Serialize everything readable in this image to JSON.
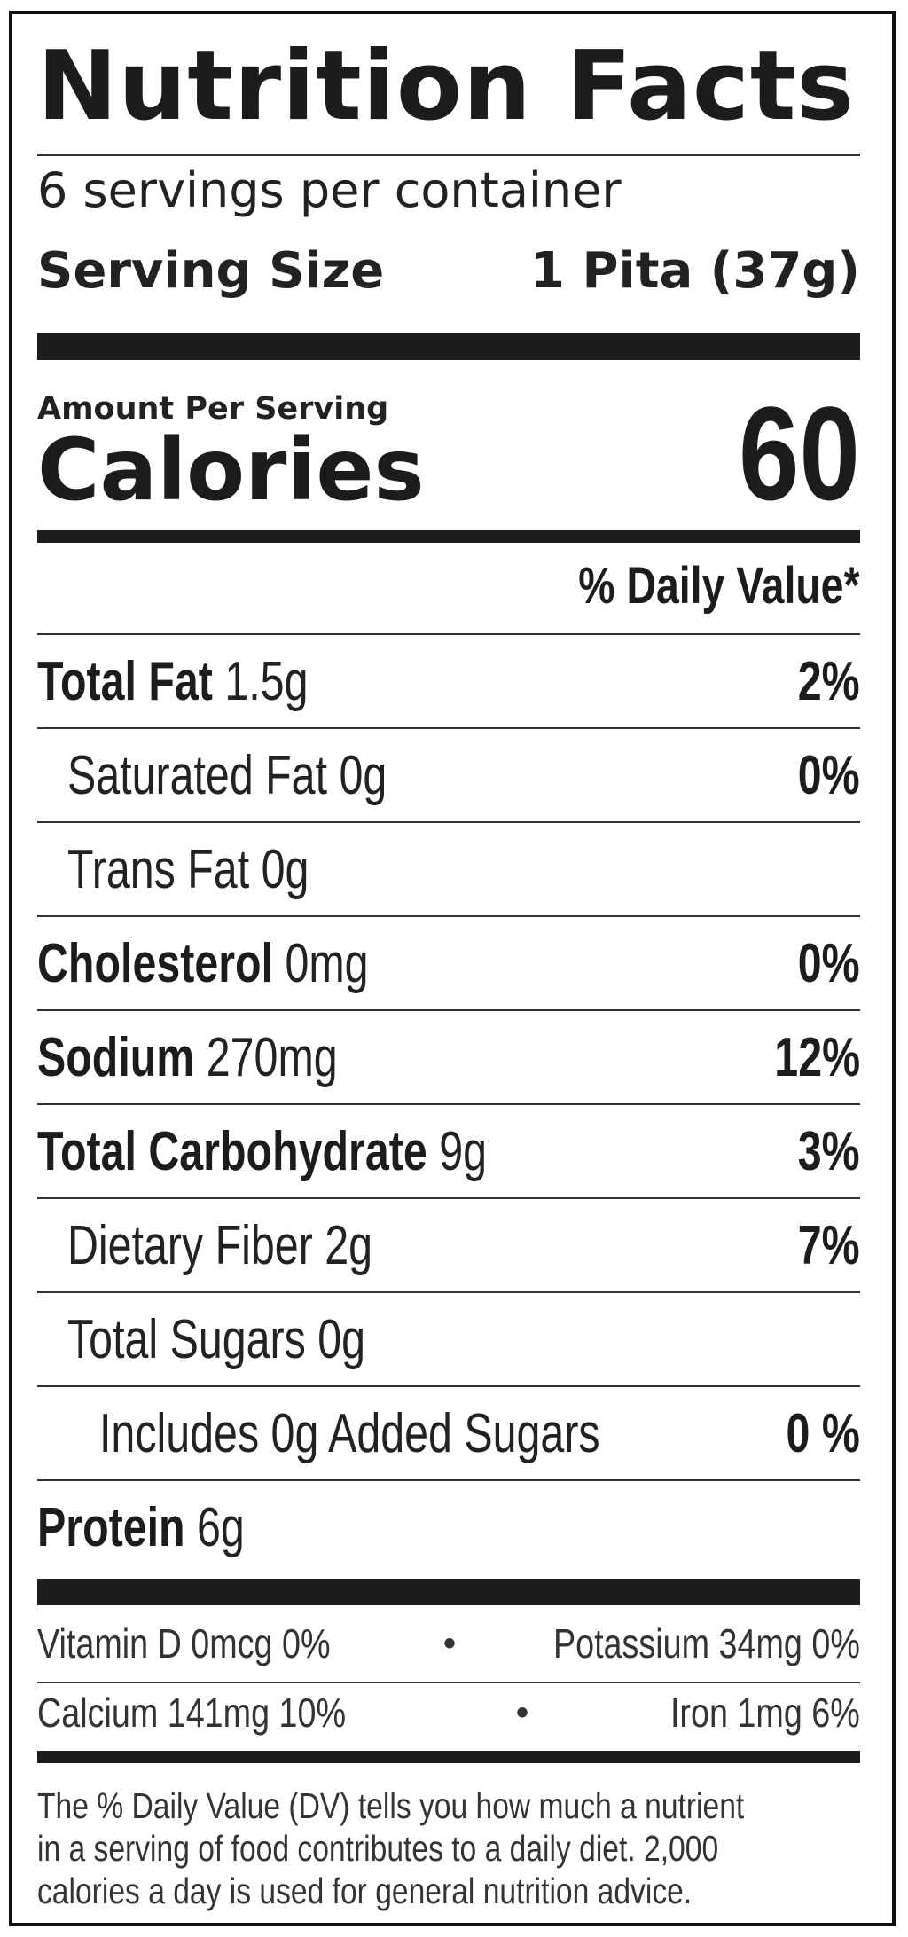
{
  "label": {
    "title": "Nutrition Facts",
    "servings_per_container": "6 servings per container",
    "serving_size_label": "Serving Size",
    "serving_size_value": "1 Pita (37g)",
    "amount_per_serving": "Amount Per Serving",
    "calories_label": "Calories",
    "calories_value": "60",
    "daily_value_header": "% Daily Value*"
  },
  "nutrients": [
    {
      "name": "Total Fat",
      "amount": " 1.5g",
      "dv": "2%"
    },
    {
      "name": "Saturated Fat 0g",
      "amount": "",
      "dv": "0%"
    },
    {
      "name": "Trans Fat 0g",
      "amount": "",
      "dv": ""
    },
    {
      "name": "Cholesterol",
      "amount": " 0mg",
      "dv": "0%"
    },
    {
      "name": "Sodium",
      "amount": " 270mg",
      "dv": "12%"
    },
    {
      "name": "Total Carbohydrate",
      "amount": " 9g",
      "dv": "3%"
    },
    {
      "name": "Dietary Fiber 2g",
      "amount": "",
      "dv": "7%"
    },
    {
      "name": "Total Sugars 0g",
      "amount": "",
      "dv": ""
    },
    {
      "name": "Includes 0g Added Sugars",
      "amount": "",
      "dv": "0 %"
    },
    {
      "name": "Protein",
      "amount": " 6g",
      "dv": ""
    }
  ],
  "minerals": {
    "vitamin_d": "Vitamin D 0mcg 0%",
    "potassium": "Potassium 34mg 0%",
    "calcium": "Calcium 141mg 10%",
    "iron": "Iron 1mg 6%",
    "separator": "•"
  },
  "footnote": {
    "line1": "The % Daily Value (DV) tells you how much a nutrient",
    "line2": "in a serving of food contributes to a daily diet. 2,000",
    "line3": "calories a day is used for general nutrition advice."
  }
}
